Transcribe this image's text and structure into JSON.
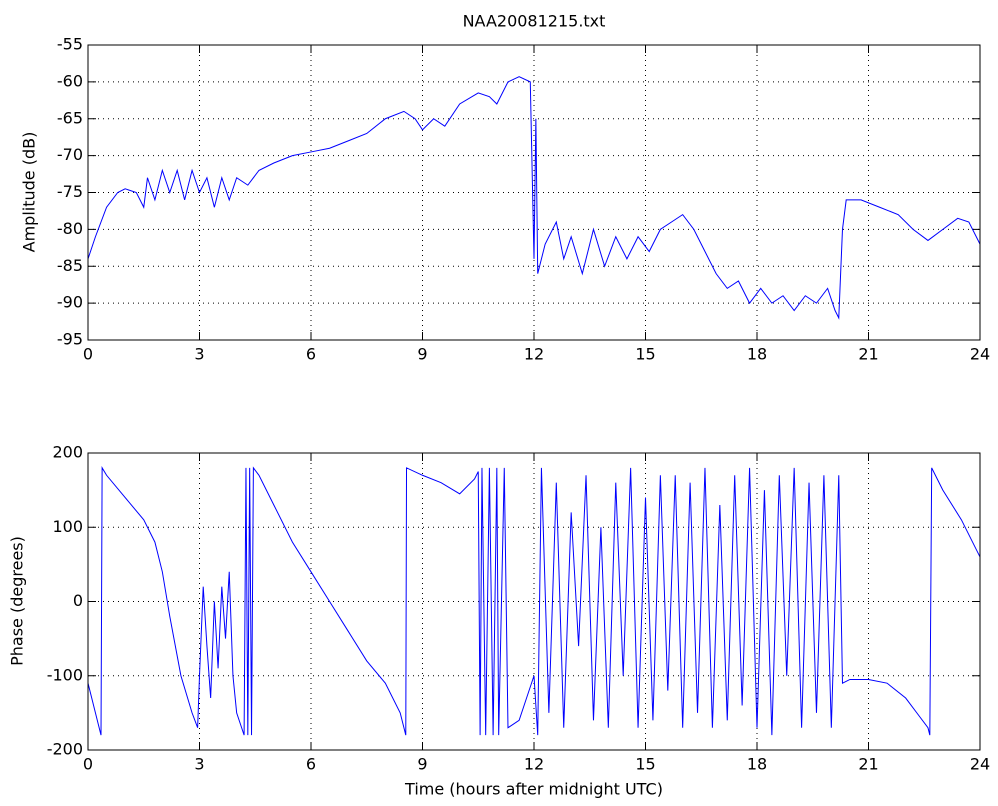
{
  "chart_data": [
    {
      "type": "line",
      "title": "NAA20081215.txt",
      "ylabel": "Amplitude (dB)",
      "color": "#0000ff",
      "grid": true,
      "x": [
        0,
        0.2,
        0.5,
        0.8,
        1.0,
        1.3,
        1.5,
        1.6,
        1.8,
        2.0,
        2.2,
        2.4,
        2.6,
        2.8,
        3.0,
        3.2,
        3.4,
        3.6,
        3.8,
        4.0,
        4.3,
        4.6,
        5.0,
        5.5,
        6.0,
        6.5,
        7.0,
        7.5,
        8.0,
        8.5,
        8.8,
        9.0,
        9.3,
        9.6,
        10.0,
        10.5,
        10.8,
        11.0,
        11.3,
        11.6,
        11.9,
        12.0,
        12.05,
        12.1,
        12.3,
        12.6,
        12.8,
        13.0,
        13.3,
        13.6,
        13.9,
        14.2,
        14.5,
        14.8,
        15.1,
        15.4,
        15.7,
        16.0,
        16.3,
        16.6,
        16.9,
        17.2,
        17.5,
        17.8,
        18.1,
        18.4,
        18.7,
        19.0,
        19.3,
        19.6,
        19.9,
        20.1,
        20.2,
        20.3,
        20.4,
        20.8,
        21.3,
        21.8,
        22.2,
        22.6,
        23.0,
        23.4,
        23.7,
        24.0
      ],
      "values": [
        -84,
        -81,
        -77,
        -75,
        -74.5,
        -75,
        -77,
        -73,
        -76,
        -72,
        -75,
        -72,
        -76,
        -72,
        -75,
        -73,
        -77,
        -73,
        -76,
        -73,
        -74,
        -72,
        -71,
        -70,
        -69.5,
        -69,
        -68,
        -67,
        -65,
        -64,
        -65,
        -66.5,
        -65,
        -66,
        -63,
        -61.5,
        -62,
        -63,
        -60,
        -59.3,
        -60,
        -84,
        -65,
        -86,
        -82,
        -79,
        -84,
        -81,
        -86,
        -80,
        -85,
        -81,
        -84,
        -81,
        -83,
        -80,
        -79,
        -78,
        -80,
        -83,
        -86,
        -88,
        -87,
        -90,
        -88,
        -90,
        -89,
        -91,
        -89,
        -90,
        -88,
        -91,
        -92,
        -80,
        -76,
        -76,
        -77,
        -78,
        -80,
        -81.5,
        -80,
        -78.5,
        -79,
        -82
      ],
      "xlim": [
        0,
        24
      ],
      "xticks": [
        0,
        3,
        6,
        9,
        12,
        15,
        18,
        21,
        24
      ],
      "ylim": [
        -95,
        -55
      ],
      "yticks": [
        -95,
        -90,
        -85,
        -80,
        -75,
        -70,
        -65,
        -60,
        -55
      ]
    },
    {
      "type": "line",
      "ylabel": "Phase (degrees)",
      "xlabel": "Time (hours after midnight UTC)",
      "color": "#0000ff",
      "grid": true,
      "x": [
        0,
        0.2,
        0.35,
        0.38,
        0.5,
        1.0,
        1.5,
        1.8,
        2.0,
        2.2,
        2.5,
        2.8,
        2.95,
        3.0,
        3.1,
        3.2,
        3.3,
        3.4,
        3.5,
        3.6,
        3.7,
        3.8,
        3.9,
        4.0,
        4.2,
        4.25,
        4.3,
        4.35,
        4.4,
        4.45,
        4.6,
        5.0,
        5.5,
        6.0,
        6.5,
        7.0,
        7.5,
        8.0,
        8.4,
        8.55,
        8.57,
        9.0,
        9.5,
        10.0,
        10.4,
        10.5,
        10.55,
        10.6,
        10.7,
        10.8,
        10.9,
        11.0,
        11.05,
        11.2,
        11.3,
        11.6,
        11.8,
        12.0,
        12.1,
        12.2,
        12.4,
        12.6,
        12.8,
        13.0,
        13.2,
        13.4,
        13.6,
        13.8,
        14.0,
        14.2,
        14.4,
        14.6,
        14.8,
        15.0,
        15.2,
        15.4,
        15.6,
        15.8,
        16.0,
        16.2,
        16.4,
        16.6,
        16.8,
        17.0,
        17.2,
        17.4,
        17.6,
        17.8,
        18.0,
        18.2,
        18.4,
        18.6,
        18.8,
        19.0,
        19.2,
        19.4,
        19.6,
        19.8,
        20.0,
        20.2,
        20.3,
        20.5,
        21.0,
        21.5,
        22.0,
        22.3,
        22.6,
        22.65,
        22.7,
        23.0,
        23.5,
        24.0
      ],
      "values": [
        -110,
        -150,
        -180,
        180,
        170,
        140,
        110,
        80,
        40,
        -20,
        -100,
        -150,
        -170,
        -100,
        20,
        -60,
        -130,
        0,
        -90,
        20,
        -50,
        40,
        -100,
        -150,
        -180,
        180,
        -180,
        180,
        -180,
        180,
        170,
        130,
        80,
        40,
        0,
        -40,
        -80,
        -110,
        -150,
        -180,
        180,
        170,
        160,
        145,
        165,
        175,
        -180,
        180,
        -180,
        180,
        -180,
        180,
        -180,
        180,
        -170,
        -160,
        -130,
        -100,
        -180,
        180,
        -150,
        160,
        -170,
        120,
        -60,
        170,
        -160,
        100,
        -170,
        160,
        -100,
        180,
        -170,
        140,
        -160,
        170,
        -120,
        170,
        -170,
        160,
        -150,
        180,
        -170,
        130,
        -160,
        170,
        -140,
        180,
        -170,
        150,
        -180,
        170,
        -100,
        180,
        -170,
        160,
        -150,
        170,
        -170,
        170,
        -110,
        -105,
        -105,
        -110,
        -130,
        -150,
        -170,
        -180,
        180,
        150,
        110,
        60
      ],
      "xlim": [
        0,
        24
      ],
      "xticks": [
        0,
        3,
        6,
        9,
        12,
        15,
        18,
        21,
        24
      ],
      "ylim": [
        -200,
        200
      ],
      "yticks": [
        -200,
        -100,
        0,
        100,
        200
      ]
    }
  ]
}
